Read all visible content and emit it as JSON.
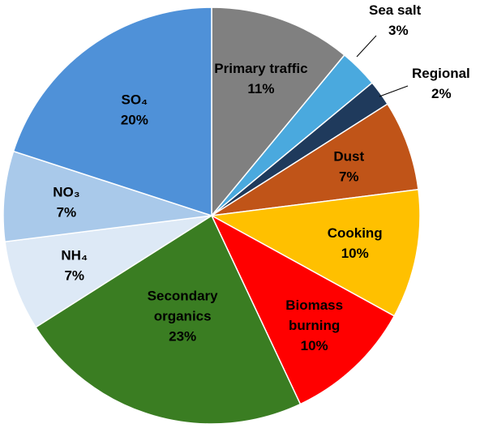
{
  "chart_data": {
    "type": "pie",
    "title": "",
    "start_angle_deg": 0,
    "direction": "clockwise",
    "slices": [
      {
        "name": "Primary traffic",
        "label_lines": [
          "Primary traffic",
          "11%"
        ],
        "value": 11,
        "color": "#808080",
        "label_color": "#000000",
        "label_position": "inside"
      },
      {
        "name": "Sea salt",
        "label_lines": [
          "Sea salt",
          "3%"
        ],
        "value": 3,
        "color": "#4aa9de",
        "label_color": "#000000",
        "label_position": "outside"
      },
      {
        "name": "Regional",
        "label_lines": [
          "Regional",
          "2%"
        ],
        "value": 2,
        "color": "#1f3a5c",
        "label_color": "#000000",
        "label_position": "outside"
      },
      {
        "name": "Dust",
        "label_lines": [
          "Dust",
          "7%"
        ],
        "value": 7,
        "color": "#c05418",
        "label_color": "#000000",
        "label_position": "inside"
      },
      {
        "name": "Cooking",
        "label_lines": [
          "Cooking",
          "10%"
        ],
        "value": 10,
        "color": "#ffc000",
        "label_color": "#000000",
        "label_position": "inside"
      },
      {
        "name": "Biomass burning",
        "label_lines": [
          "Biomass",
          "burning",
          "10%"
        ],
        "value": 10,
        "color": "#ff0000",
        "label_color": "#000000",
        "label_position": "inside"
      },
      {
        "name": "Secondary organics",
        "label_lines": [
          "Secondary",
          "organics",
          "23%"
        ],
        "value": 23,
        "color": "#3a7d22",
        "label_color": "#000000",
        "label_position": "inside"
      },
      {
        "name": "NH4",
        "label_lines": [
          "NH₄",
          "7%"
        ],
        "value": 7,
        "color": "#dde9f6",
        "label_color": "#000000",
        "label_position": "inside"
      },
      {
        "name": "NO3",
        "label_lines": [
          "NO₃",
          "7%"
        ],
        "value": 7,
        "color": "#a9c9ea",
        "label_color": "#000000",
        "label_position": "inside"
      },
      {
        "name": "SO4",
        "label_lines": [
          "SO₄",
          "20%"
        ],
        "value": 20,
        "color": "#4f91d8",
        "label_color": "#000000",
        "label_position": "inside"
      }
    ]
  }
}
